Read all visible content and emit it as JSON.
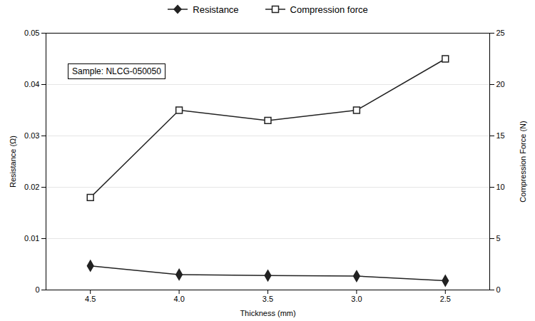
{
  "chart_data": {
    "type": "line",
    "x": [
      4.5,
      4.0,
      3.5,
      3.0,
      2.5
    ],
    "xlabel": "Thickness (mm)",
    "xlim": [
      4.75,
      2.25
    ],
    "xticks": [
      4.5,
      {
        "value": 4.0,
        "label": "4.0"
      },
      3.5,
      {
        "value": 3.0,
        "label": "3.0"
      },
      2.5
    ],
    "ylabel": "Resistance (Ω)",
    "ylim": [
      0,
      0.05
    ],
    "yticks": [
      0,
      0.01,
      0.02,
      0.03,
      0.04,
      0.05
    ],
    "y2label": "Compression Force (N)",
    "y2lim": [
      0,
      25
    ],
    "y2ticks": [
      0,
      5,
      10,
      15,
      20,
      25
    ],
    "grid": "y",
    "legend": "top",
    "annotations": [
      "Sample: NLCG-050050"
    ],
    "series": [
      {
        "name": "Resistance",
        "color": "#222222",
        "marker": "diamond",
        "values": [
          0.0047,
          0.003,
          0.0028,
          0.0027,
          0.0018
        ]
      },
      {
        "name": "Compression force",
        "color": "#222222",
        "marker": "square-open",
        "axis": "y2",
        "values": [
          9.0,
          17.5,
          16.5,
          17.5,
          22.5
        ]
      }
    ]
  }
}
